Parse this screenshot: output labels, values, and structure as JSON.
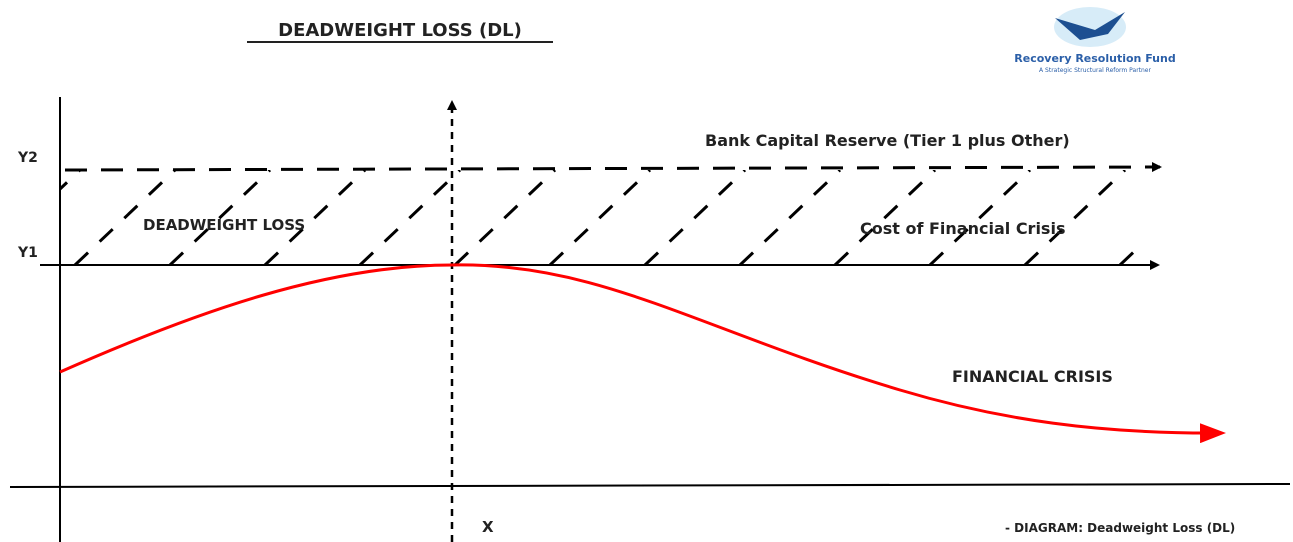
{
  "header": {
    "title": "DEADWEIGHT LOSS (DL)"
  },
  "logo": {
    "name": "Recovery Resolution Fund",
    "tagline": "A Strategic Structural Reform Partner"
  },
  "labels": {
    "y2": "Y2",
    "y1": "Y1",
    "x": "X",
    "bank_capital": "Bank Capital Reserve (Tier 1 plus Other)",
    "deadweight_loss": "DEADWEIGHT LOSS",
    "cost_crisis": "Cost of Financial Crisis",
    "financial_crisis": "FINANCIAL CRISIS"
  },
  "caption": "- DIAGRAM: Deadweight Loss (DL)"
}
